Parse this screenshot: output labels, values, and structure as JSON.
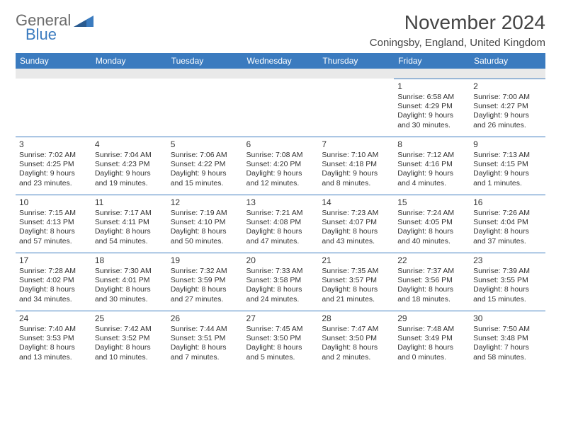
{
  "logo": {
    "text1": "General",
    "text2": "Blue",
    "triangle_color": "#3b7bbf"
  },
  "title": "November 2024",
  "location": "Coningsby, England, United Kingdom",
  "colors": {
    "header_bg": "#3b7bbf",
    "header_fg": "#ffffff",
    "spacer_bg": "#e9e9e9",
    "cell_border": "#3b7bbf",
    "text": "#333333",
    "title_color": "#444444"
  },
  "day_headers": [
    "Sunday",
    "Monday",
    "Tuesday",
    "Wednesday",
    "Thursday",
    "Friday",
    "Saturday"
  ],
  "weeks": [
    [
      null,
      null,
      null,
      null,
      null,
      {
        "n": "1",
        "sr": "6:58 AM",
        "ss": "4:29 PM",
        "dh": "9",
        "dm": "30"
      },
      {
        "n": "2",
        "sr": "7:00 AM",
        "ss": "4:27 PM",
        "dh": "9",
        "dm": "26"
      }
    ],
    [
      {
        "n": "3",
        "sr": "7:02 AM",
        "ss": "4:25 PM",
        "dh": "9",
        "dm": "23"
      },
      {
        "n": "4",
        "sr": "7:04 AM",
        "ss": "4:23 PM",
        "dh": "9",
        "dm": "19"
      },
      {
        "n": "5",
        "sr": "7:06 AM",
        "ss": "4:22 PM",
        "dh": "9",
        "dm": "15"
      },
      {
        "n": "6",
        "sr": "7:08 AM",
        "ss": "4:20 PM",
        "dh": "9",
        "dm": "12"
      },
      {
        "n": "7",
        "sr": "7:10 AM",
        "ss": "4:18 PM",
        "dh": "9",
        "dm": "8"
      },
      {
        "n": "8",
        "sr": "7:12 AM",
        "ss": "4:16 PM",
        "dh": "9",
        "dm": "4"
      },
      {
        "n": "9",
        "sr": "7:13 AM",
        "ss": "4:15 PM",
        "dh": "9",
        "dm": "1"
      }
    ],
    [
      {
        "n": "10",
        "sr": "7:15 AM",
        "ss": "4:13 PM",
        "dh": "8",
        "dm": "57"
      },
      {
        "n": "11",
        "sr": "7:17 AM",
        "ss": "4:11 PM",
        "dh": "8",
        "dm": "54"
      },
      {
        "n": "12",
        "sr": "7:19 AM",
        "ss": "4:10 PM",
        "dh": "8",
        "dm": "50"
      },
      {
        "n": "13",
        "sr": "7:21 AM",
        "ss": "4:08 PM",
        "dh": "8",
        "dm": "47"
      },
      {
        "n": "14",
        "sr": "7:23 AM",
        "ss": "4:07 PM",
        "dh": "8",
        "dm": "43"
      },
      {
        "n": "15",
        "sr": "7:24 AM",
        "ss": "4:05 PM",
        "dh": "8",
        "dm": "40"
      },
      {
        "n": "16",
        "sr": "7:26 AM",
        "ss": "4:04 PM",
        "dh": "8",
        "dm": "37"
      }
    ],
    [
      {
        "n": "17",
        "sr": "7:28 AM",
        "ss": "4:02 PM",
        "dh": "8",
        "dm": "34"
      },
      {
        "n": "18",
        "sr": "7:30 AM",
        "ss": "4:01 PM",
        "dh": "8",
        "dm": "30"
      },
      {
        "n": "19",
        "sr": "7:32 AM",
        "ss": "3:59 PM",
        "dh": "8",
        "dm": "27"
      },
      {
        "n": "20",
        "sr": "7:33 AM",
        "ss": "3:58 PM",
        "dh": "8",
        "dm": "24"
      },
      {
        "n": "21",
        "sr": "7:35 AM",
        "ss": "3:57 PM",
        "dh": "8",
        "dm": "21"
      },
      {
        "n": "22",
        "sr": "7:37 AM",
        "ss": "3:56 PM",
        "dh": "8",
        "dm": "18"
      },
      {
        "n": "23",
        "sr": "7:39 AM",
        "ss": "3:55 PM",
        "dh": "8",
        "dm": "15"
      }
    ],
    [
      {
        "n": "24",
        "sr": "7:40 AM",
        "ss": "3:53 PM",
        "dh": "8",
        "dm": "13"
      },
      {
        "n": "25",
        "sr": "7:42 AM",
        "ss": "3:52 PM",
        "dh": "8",
        "dm": "10"
      },
      {
        "n": "26",
        "sr": "7:44 AM",
        "ss": "3:51 PM",
        "dh": "8",
        "dm": "7"
      },
      {
        "n": "27",
        "sr": "7:45 AM",
        "ss": "3:50 PM",
        "dh": "8",
        "dm": "5"
      },
      {
        "n": "28",
        "sr": "7:47 AM",
        "ss": "3:50 PM",
        "dh": "8",
        "dm": "2"
      },
      {
        "n": "29",
        "sr": "7:48 AM",
        "ss": "3:49 PM",
        "dh": "8",
        "dm": "0"
      },
      {
        "n": "30",
        "sr": "7:50 AM",
        "ss": "3:48 PM",
        "dh": "7",
        "dm": "58"
      }
    ]
  ],
  "labels": {
    "sunrise": "Sunrise:",
    "sunset": "Sunset:",
    "daylight": "Daylight:",
    "hours": "hours",
    "and": "and",
    "minutes": "minutes."
  }
}
